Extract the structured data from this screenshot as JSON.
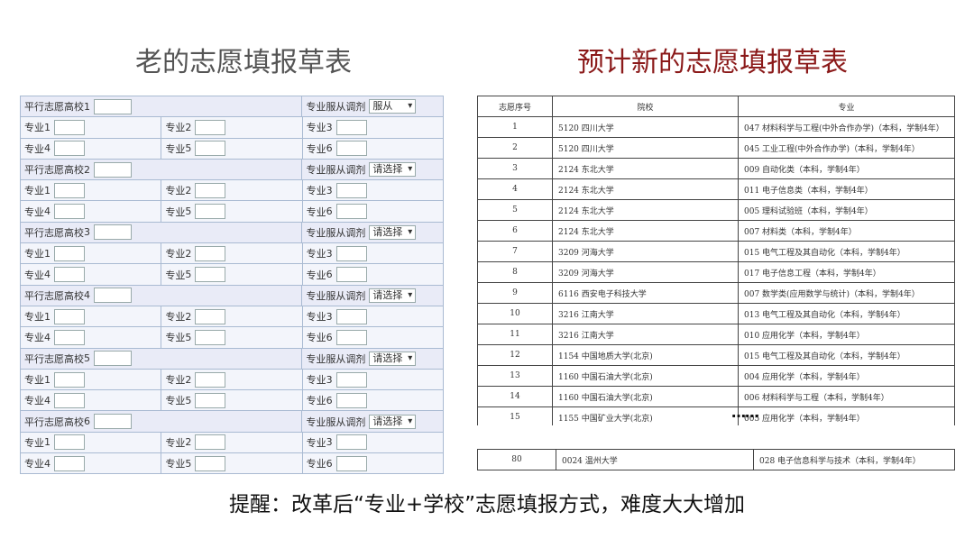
{
  "titles": {
    "old": "老的志愿填报草表",
    "new": "预计新的志愿填报草表"
  },
  "old_form": {
    "school_label_prefix": "平行志愿高校",
    "adjust_label": "专业服从调剂",
    "major_label_prefix": "专业",
    "schools": [
      {
        "n": "1",
        "adjust": "服从"
      },
      {
        "n": "2",
        "adjust": "请选择"
      },
      {
        "n": "3",
        "adjust": "请选择"
      },
      {
        "n": "4",
        "adjust": "请选择"
      },
      {
        "n": "5",
        "adjust": "请选择"
      },
      {
        "n": "6",
        "adjust": "请选择"
      }
    ]
  },
  "new_table": {
    "headers": [
      "志愿序号",
      "院校",
      "专业"
    ],
    "rows": [
      [
        "1",
        "5120 四川大学",
        "047 材料科学与工程(中外合作办学)（本科，学制4年）"
      ],
      [
        "2",
        "5120 四川大学",
        "045 工业工程(中外合作办学)（本科，学制4年）"
      ],
      [
        "3",
        "2124 东北大学",
        "009 自动化类（本科，学制4年）"
      ],
      [
        "4",
        "2124 东北大学",
        "011 电子信息类（本科，学制4年）"
      ],
      [
        "5",
        "2124 东北大学",
        "005 理科试验班（本科，学制4年）"
      ],
      [
        "6",
        "2124 东北大学",
        "007 材料类（本科，学制4年）"
      ],
      [
        "7",
        "3209 河海大学",
        "015 电气工程及其自动化（本科，学制4年）"
      ],
      [
        "8",
        "3209 河海大学",
        "017 电子信息工程（本科，学制4年）"
      ],
      [
        "9",
        "6116 西安电子科技大学",
        "007 数学类(应用数学与统计)（本科，学制4年）"
      ],
      [
        "10",
        "3216 江南大学",
        "013 电气工程及其自动化（本科，学制4年）"
      ],
      [
        "11",
        "3216 江南大学",
        "010 应用化学（本科，学制4年）"
      ],
      [
        "12",
        "1154 中国地质大学(北京)",
        "015 电气工程及其自动化（本科，学制4年）"
      ],
      [
        "13",
        "1160 中国石油大学(北京)",
        "004 应用化学（本科，学制4年）"
      ],
      [
        "14",
        "1160 中国石油大学(北京)",
        "006 材料科学与工程（本科，学制4年）"
      ],
      [
        "15",
        "1155 中国矿业大学(北京)",
        "005 应用化学（本科，学制4年）"
      ]
    ],
    "ellipsis": "……",
    "last_row": [
      "80",
      "0024 温州大学",
      "028 电子信息科学与技术（本科，学制4年）"
    ]
  },
  "reminder": "提醒：改革后“专业+学校”志愿填报方式，难度大大增加"
}
